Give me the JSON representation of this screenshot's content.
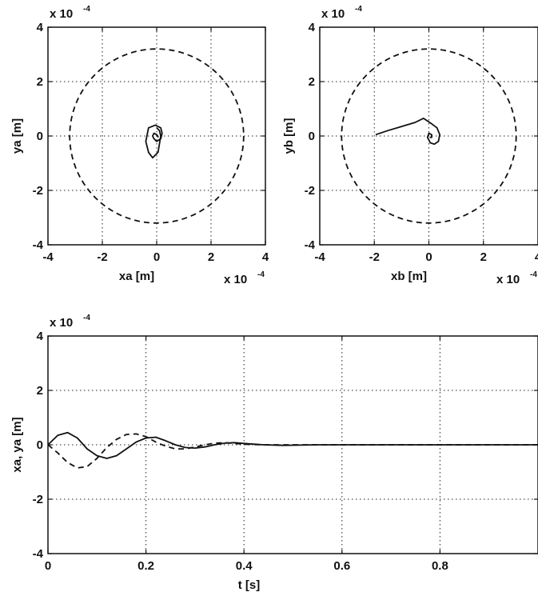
{
  "chart_data": [
    {
      "type": "line",
      "panel": "top-left",
      "xlabel": "xa [m]",
      "ylabel": "ya [m]",
      "x_multiplier_text": "x 10",
      "x_multiplier_exp": "-4",
      "y_multiplier_text": "x 10",
      "y_multiplier_exp": "-4",
      "xlim": [
        -4,
        4
      ],
      "ylim": [
        -4,
        4
      ],
      "xticks": [
        "-4",
        "-2",
        "0",
        "2",
        "4"
      ],
      "yticks": [
        "-4",
        "-2",
        "0",
        "2",
        "4"
      ],
      "grid": true,
      "units_scale": 0.0001,
      "series": [
        {
          "style": "dashed",
          "shape": "circle",
          "radius": 3.2,
          "center": [
            0,
            0
          ]
        },
        {
          "style": "solid",
          "x": [
            0,
            0.1,
            0.15,
            0.05,
            -0.15,
            -0.3,
            -0.4,
            -0.3,
            -0.05,
            0.15,
            0.2,
            0.15,
            0.0,
            -0.1,
            -0.15,
            -0.1,
            0.0,
            0.05,
            0.03
          ],
          "y": [
            0.3,
            0.2,
            0.0,
            -0.6,
            -0.8,
            -0.6,
            -0.2,
            0.3,
            0.4,
            0.3,
            0.1,
            -0.1,
            -0.2,
            -0.1,
            0.0,
            0.1,
            0.05,
            -0.02,
            -0.05
          ]
        }
      ]
    },
    {
      "type": "line",
      "panel": "top-right",
      "xlabel": "xb [m]",
      "ylabel": "yb [m]",
      "x_multiplier_text": "x 10",
      "x_multiplier_exp": "-4",
      "y_multiplier_text": "x 10",
      "y_multiplier_exp": "-4",
      "xlim": [
        -4,
        4
      ],
      "ylim": [
        -4,
        4
      ],
      "xticks": [
        "-4",
        "-2",
        "0",
        "2",
        "4"
      ],
      "yticks": [
        "-4",
        "-2",
        "0",
        "2",
        "4"
      ],
      "grid": true,
      "units_scale": 0.0001,
      "series": [
        {
          "style": "dashed",
          "shape": "circle",
          "radius": 3.2,
          "center": [
            0,
            0
          ]
        },
        {
          "style": "solid",
          "x": [
            -1.95,
            -1.5,
            -1.0,
            -0.5,
            -0.2,
            -0.05,
            0.1,
            0.3,
            0.4,
            0.35,
            0.2,
            0.05,
            -0.05,
            0.0,
            0.1,
            0.1,
            0.03
          ],
          "y": [
            0.05,
            0.2,
            0.35,
            0.5,
            0.65,
            0.55,
            0.45,
            0.3,
            0.05,
            -0.2,
            -0.3,
            -0.25,
            -0.05,
            0.1,
            0.05,
            -0.05,
            -0.05
          ]
        }
      ]
    },
    {
      "type": "line",
      "panel": "bottom",
      "xlabel": "t [s]",
      "ylabel": "xa, ya [m]",
      "y_multiplier_text": "x 10",
      "y_multiplier_exp": "-4",
      "xlim": [
        0,
        1
      ],
      "ylim": [
        -4,
        4
      ],
      "xticks": [
        "0",
        "0.2",
        "0.4",
        "0.6",
        "0.8"
      ],
      "yticks": [
        "-4",
        "-2",
        "0",
        "2",
        "4"
      ],
      "grid": true,
      "units_scale": 0.0001,
      "series": [
        {
          "style": "solid",
          "x": [
            0,
            0.02,
            0.04,
            0.06,
            0.08,
            0.1,
            0.12,
            0.14,
            0.16,
            0.18,
            0.2,
            0.22,
            0.24,
            0.26,
            0.28,
            0.3,
            0.32,
            0.34,
            0.36,
            0.38,
            0.4,
            0.44,
            0.48,
            0.55,
            1.0
          ],
          "y": [
            0,
            0.35,
            0.45,
            0.25,
            -0.15,
            -0.4,
            -0.5,
            -0.4,
            -0.15,
            0.1,
            0.25,
            0.28,
            0.15,
            0.0,
            -0.1,
            -0.12,
            -0.08,
            0.0,
            0.06,
            0.08,
            0.05,
            0.0,
            -0.02,
            0.0,
            0.0
          ]
        },
        {
          "style": "dashed",
          "x": [
            0,
            0.02,
            0.04,
            0.06,
            0.08,
            0.1,
            0.12,
            0.14,
            0.16,
            0.18,
            0.2,
            0.22,
            0.24,
            0.26,
            0.28,
            0.3,
            0.32,
            0.34,
            0.36,
            0.38,
            0.4,
            0.44,
            0.5,
            1.0
          ],
          "y": [
            0,
            -0.3,
            -0.65,
            -0.85,
            -0.8,
            -0.5,
            -0.1,
            0.2,
            0.38,
            0.4,
            0.3,
            0.1,
            -0.05,
            -0.15,
            -0.15,
            -0.08,
            0.0,
            0.06,
            0.08,
            0.05,
            0.02,
            0.0,
            0.0,
            0.0
          ]
        }
      ]
    }
  ]
}
